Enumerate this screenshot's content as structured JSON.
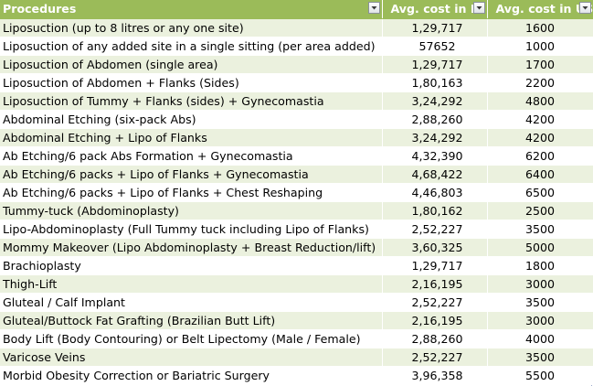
{
  "table": {
    "headers": {
      "procedure": "Procedures",
      "inr": "Avg. cost in IN",
      "usd": "Avg. cost in US"
    },
    "rows": [
      {
        "procedure": "Liposuction (up to 8 litres or any one site)",
        "inr": "1,29,717",
        "usd": "1600"
      },
      {
        "procedure": "Liposuction of any added site in a single sitting (per area added)",
        "inr": "57652",
        "usd": "1000"
      },
      {
        "procedure": "Liposuction of Abdomen (single area)",
        "inr": "1,29,717",
        "usd": "1700"
      },
      {
        "procedure": "Liposuction of Abdomen + Flanks (Sides)",
        "inr": "1,80,163",
        "usd": "2200"
      },
      {
        "procedure": "Liposuction of Tummy + Flanks (sides) + Gynecomastia",
        "inr": "3,24,292",
        "usd": "4800"
      },
      {
        "procedure": "Abdominal Etching (six-pack Abs)",
        "inr": "2,88,260",
        "usd": "4200"
      },
      {
        "procedure": "Abdominal Etching + Lipo of Flanks",
        "inr": "3,24,292",
        "usd": "4200"
      },
      {
        "procedure": "Ab Etching/6 pack Abs Formation + Gynecomastia",
        "inr": "4,32,390",
        "usd": "6200"
      },
      {
        "procedure": "Ab Etching/6 packs + Lipo of Flanks + Gynecomastia",
        "inr": "4,68,422",
        "usd": "6400"
      },
      {
        "procedure": "Ab Etching/6 packs + Lipo of Flanks + Chest Reshaping",
        "inr": "4,46,803",
        "usd": "6500"
      },
      {
        "procedure": "Tummy-tuck (Abdominoplasty)",
        "inr": "1,80,162",
        "usd": "2500"
      },
      {
        "procedure": "Lipo-Abdominoplasty (Full Tummy tuck including Lipo of Flanks)",
        "inr": "2,52,227",
        "usd": "3500"
      },
      {
        "procedure": "Mommy Makeover (Lipo Abdominoplasty + Breast Reduction/lift)",
        "inr": "3,60,325",
        "usd": "5000"
      },
      {
        "procedure": "Brachioplasty",
        "inr": "1,29,717",
        "usd": "1800"
      },
      {
        "procedure": "Thigh-Lift",
        "inr": "2,16,195",
        "usd": "3000"
      },
      {
        "procedure": "Gluteal / Calf Implant",
        "inr": "2,52,227",
        "usd": "3500"
      },
      {
        "procedure": "Gluteal/Buttock Fat Grafting (Brazilian Butt Lift)",
        "inr": "2,16,195",
        "usd": "3000"
      },
      {
        "procedure": "Body Lift (Body Contouring) or Belt Lipectomy (Male / Female)",
        "inr": "2,88,260",
        "usd": "4000"
      },
      {
        "procedure": "Varicose Veins",
        "inr": "2,52,227",
        "usd": "3500"
      },
      {
        "procedure": "Morbid Obesity Correction or Bariatric Surgery",
        "inr": "3,96,358",
        "usd": "5500"
      }
    ]
  },
  "icons": {
    "filter": "filter-dropdown-arrow-icon",
    "resize": "table-resize-handle-icon"
  },
  "colors": {
    "header_bg": "#9bbb59",
    "header_text": "#ffffff",
    "band_row_bg": "#ebf1de",
    "plain_row_bg": "#ffffff"
  }
}
